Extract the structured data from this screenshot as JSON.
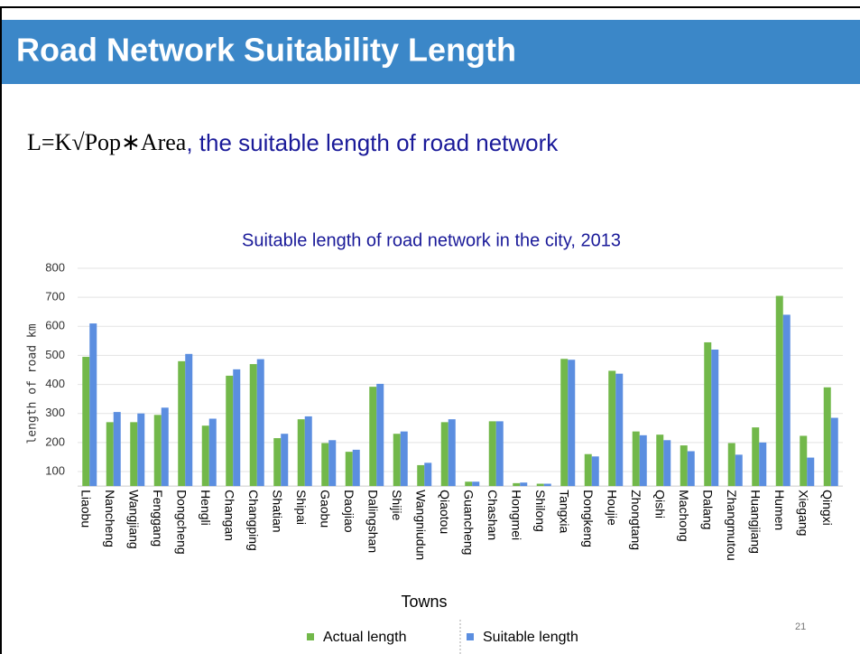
{
  "slide": {
    "title": "Road Network Suitability Length",
    "formula": "L=K√Pop∗Area",
    "formula_note": ", the suitable length of road network",
    "page_number": "21"
  },
  "chart_data": {
    "type": "bar",
    "title": "Suitable length of road network in the city, 2013",
    "x_label": "Towns",
    "y_label": "length of road km",
    "categories": [
      "Liaobu",
      "Nancheng",
      "Wangjiang",
      "Fenggang",
      "Dongcheng",
      "Hengli",
      "Changan",
      "Changping",
      "Shatian",
      "Shipai",
      "Gaobu",
      "Daojiao",
      "Dalingshan",
      "Shijie",
      "Wangniudun",
      "Qiaotou",
      "Guancheng",
      "Chashan",
      "Hongmei",
      "Shilong",
      "Tangxia",
      "Dongkeng",
      "Houjie",
      "Zhongtang",
      "Qishi",
      "Machong",
      "Dalang",
      "Zhangmutou",
      "Huangjiang",
      "Humen",
      "Xiegang",
      "Qingxi"
    ],
    "series": [
      {
        "name": "Actual length",
        "color": "#72b84a",
        "values": [
          495,
          270,
          270,
          295,
          480,
          258,
          430,
          470,
          215,
          280,
          198,
          168,
          392,
          230,
          122,
          270,
          65,
          273,
          60,
          58,
          488,
          160,
          447,
          238,
          227,
          190,
          545,
          198,
          252,
          705,
          223,
          390
        ]
      },
      {
        "name": "Suitable length",
        "color": "#5b8ee0",
        "values": [
          610,
          305,
          300,
          320,
          505,
          282,
          452,
          487,
          230,
          290,
          208,
          175,
          402,
          238,
          130,
          280,
          65,
          273,
          62,
          58,
          485,
          152,
          437,
          225,
          208,
          170,
          520,
          158,
          200,
          640,
          148,
          285
        ]
      }
    ],
    "ylim": [
      50,
      800
    ],
    "yticks": [
      100,
      200,
      300,
      400,
      500,
      600,
      700,
      800
    ],
    "grid": true
  }
}
